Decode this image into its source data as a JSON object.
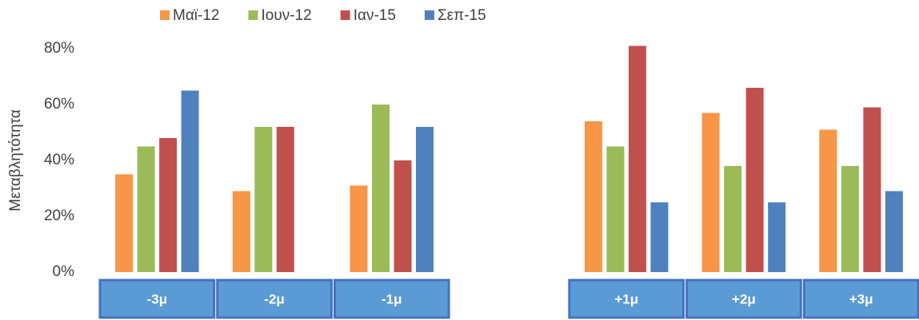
{
  "chart_data": {
    "type": "bar",
    "y_label": "Μεταβλητότητα",
    "categories": [
      "-3μ",
      "-2μ",
      "-1μ",
      null,
      "+1μ",
      "+2μ",
      "+3μ"
    ],
    "series": [
      {
        "name": "Μαϊ-12",
        "color": "#f79646",
        "values": [
          35,
          29,
          31,
          null,
          54,
          57,
          51
        ]
      },
      {
        "name": "Ιουν-12",
        "color": "#9bbb59",
        "values": [
          45,
          52,
          60,
          null,
          45,
          38,
          38
        ]
      },
      {
        "name": "Ιαν-15",
        "color": "#c0504d",
        "values": [
          48,
          52,
          40,
          null,
          81,
          66,
          59
        ]
      },
      {
        "name": "Σεπ-15",
        "color": "#4f81bd",
        "values": [
          65,
          null,
          52,
          null,
          25,
          25,
          29
        ]
      }
    ],
    "ylim": [
      0,
      80
    ],
    "yticks": [
      {
        "value": 0,
        "label": "0%"
      },
      {
        "value": 20,
        "label": "20%"
      },
      {
        "value": 40,
        "label": "40%"
      },
      {
        "value": 60,
        "label": "60%"
      },
      {
        "value": 80,
        "label": "80%"
      }
    ],
    "grid": false,
    "legend": "top"
  }
}
